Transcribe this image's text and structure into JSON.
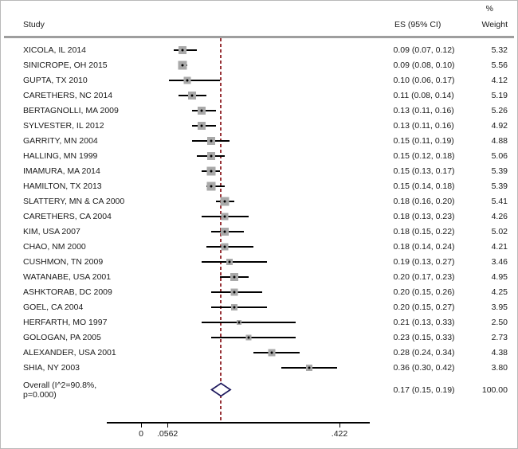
{
  "header": {
    "study": "Study",
    "es": "ES (95% CI)",
    "weight_percent": "%",
    "weight": "Weight"
  },
  "chart_data": {
    "type": "forest",
    "title": "",
    "x_axis": {
      "tick_labels": [
        "0",
        ".0562",
        ".422"
      ],
      "tick_values": [
        0,
        0.0562,
        0.422
      ],
      "xmin": -0.0237,
      "xmax": 0.4847,
      "grid": false
    },
    "null_line_value": 0.17,
    "studies": [
      {
        "label": "XICOLA, IL 2014",
        "es": 0.09,
        "ci_low": 0.07,
        "ci_high": 0.12,
        "weight": 5.32,
        "es_text": "0.09 (0.07, 0.12)",
        "weight_text": "5.32"
      },
      {
        "label": "SINICROPE, OH 2015",
        "es": 0.09,
        "ci_low": 0.08,
        "ci_high": 0.1,
        "weight": 5.56,
        "es_text": "0.09 (0.08, 0.10)",
        "weight_text": "5.56"
      },
      {
        "label": "GUPTA, TX 2010",
        "es": 0.1,
        "ci_low": 0.06,
        "ci_high": 0.17,
        "weight": 4.12,
        "es_text": "0.10 (0.06, 0.17)",
        "weight_text": "4.12"
      },
      {
        "label": "CARETHERS, NC 2014",
        "es": 0.11,
        "ci_low": 0.08,
        "ci_high": 0.14,
        "weight": 5.19,
        "es_text": "0.11 (0.08, 0.14)",
        "weight_text": "5.19"
      },
      {
        "label": "BERTAGNOLLI, MA 2009",
        "es": 0.13,
        "ci_low": 0.11,
        "ci_high": 0.16,
        "weight": 5.26,
        "es_text": "0.13 (0.11, 0.16)",
        "weight_text": "5.26"
      },
      {
        "label": "SYLVESTER, IL 2012",
        "es": 0.13,
        "ci_low": 0.11,
        "ci_high": 0.16,
        "weight": 4.92,
        "es_text": "0.13 (0.11, 0.16)",
        "weight_text": "4.92"
      },
      {
        "label": "GARRITY, MN 2004",
        "es": 0.15,
        "ci_low": 0.11,
        "ci_high": 0.19,
        "weight": 4.88,
        "es_text": "0.15 (0.11, 0.19)",
        "weight_text": "4.88"
      },
      {
        "label": "HALLING, MN 1999",
        "es": 0.15,
        "ci_low": 0.12,
        "ci_high": 0.18,
        "weight": 5.06,
        "es_text": "0.15 (0.12, 0.18)",
        "weight_text": "5.06"
      },
      {
        "label": "IMAMURA, MA 2014",
        "es": 0.15,
        "ci_low": 0.13,
        "ci_high": 0.17,
        "weight": 5.39,
        "es_text": "0.15 (0.13, 0.17)",
        "weight_text": "5.39"
      },
      {
        "label": "HAMILTON, TX 2013",
        "es": 0.15,
        "ci_low": 0.14,
        "ci_high": 0.18,
        "weight": 5.39,
        "es_text": "0.15 (0.14, 0.18)",
        "weight_text": "5.39"
      },
      {
        "label": "SLATTERY, MN & CA 2000",
        "es": 0.18,
        "ci_low": 0.16,
        "ci_high": 0.2,
        "weight": 5.41,
        "es_text": "0.18 (0.16, 0.20)",
        "weight_text": "5.41"
      },
      {
        "label": "CARETHERS, CA 2004",
        "es": 0.18,
        "ci_low": 0.13,
        "ci_high": 0.23,
        "weight": 4.26,
        "es_text": "0.18 (0.13, 0.23)",
        "weight_text": "4.26"
      },
      {
        "label": "KIM, USA 2007",
        "es": 0.18,
        "ci_low": 0.15,
        "ci_high": 0.22,
        "weight": 5.02,
        "es_text": "0.18 (0.15, 0.22)",
        "weight_text": "5.02"
      },
      {
        "label": "CHAO, NM 2000",
        "es": 0.18,
        "ci_low": 0.14,
        "ci_high": 0.24,
        "weight": 4.21,
        "es_text": "0.18 (0.14, 0.24)",
        "weight_text": "4.21"
      },
      {
        "label": "CUSHMON, TN 2009",
        "es": 0.19,
        "ci_low": 0.13,
        "ci_high": 0.27,
        "weight": 3.46,
        "es_text": "0.19 (0.13, 0.27)",
        "weight_text": "3.46"
      },
      {
        "label": "WATANABE, USA 2001",
        "es": 0.2,
        "ci_low": 0.17,
        "ci_high": 0.23,
        "weight": 4.95,
        "es_text": "0.20 (0.17, 0.23)",
        "weight_text": "4.95"
      },
      {
        "label": "ASHKTORAB, DC 2009",
        "es": 0.2,
        "ci_low": 0.15,
        "ci_high": 0.26,
        "weight": 4.25,
        "es_text": "0.20 (0.15, 0.26)",
        "weight_text": "4.25"
      },
      {
        "label": "GOEL, CA 2004",
        "es": 0.2,
        "ci_low": 0.15,
        "ci_high": 0.27,
        "weight": 3.95,
        "es_text": "0.20 (0.15, 0.27)",
        "weight_text": "3.95"
      },
      {
        "label": "HERFARTH, MO 1997",
        "es": 0.21,
        "ci_low": 0.13,
        "ci_high": 0.33,
        "weight": 2.5,
        "es_text": "0.21 (0.13, 0.33)",
        "weight_text": "2.50"
      },
      {
        "label": "GOLOGAN, PA 2005",
        "es": 0.23,
        "ci_low": 0.15,
        "ci_high": 0.33,
        "weight": 2.73,
        "es_text": "0.23 (0.15, 0.33)",
        "weight_text": "2.73"
      },
      {
        "label": "ALEXANDER, USA 2001",
        "es": 0.28,
        "ci_low": 0.24,
        "ci_high": 0.34,
        "weight": 4.38,
        "es_text": "0.28 (0.24, 0.34)",
        "weight_text": "4.38"
      },
      {
        "label": "SHIA, NY 2003",
        "es": 0.36,
        "ci_low": 0.3,
        "ci_high": 0.42,
        "weight": 3.8,
        "es_text": "0.36 (0.30, 0.42)",
        "weight_text": "3.80"
      }
    ],
    "overall": {
      "label_line1": "Overall (I^2=90.8%,",
      "label_line2": "p=0.000)",
      "es": 0.17,
      "ci_low": 0.15,
      "ci_high": 0.19,
      "es_text": "0.17 (0.15, 0.19)",
      "weight_text": "100.00"
    },
    "colors": {
      "null_line": "#993338",
      "diamond_outline": "#1f1a5e",
      "ci_line": "#000000",
      "marker_fill": "#a9a9a9",
      "point_dot": "#000000",
      "header_rule": "#9e9e9e",
      "axis": "#000000"
    }
  }
}
